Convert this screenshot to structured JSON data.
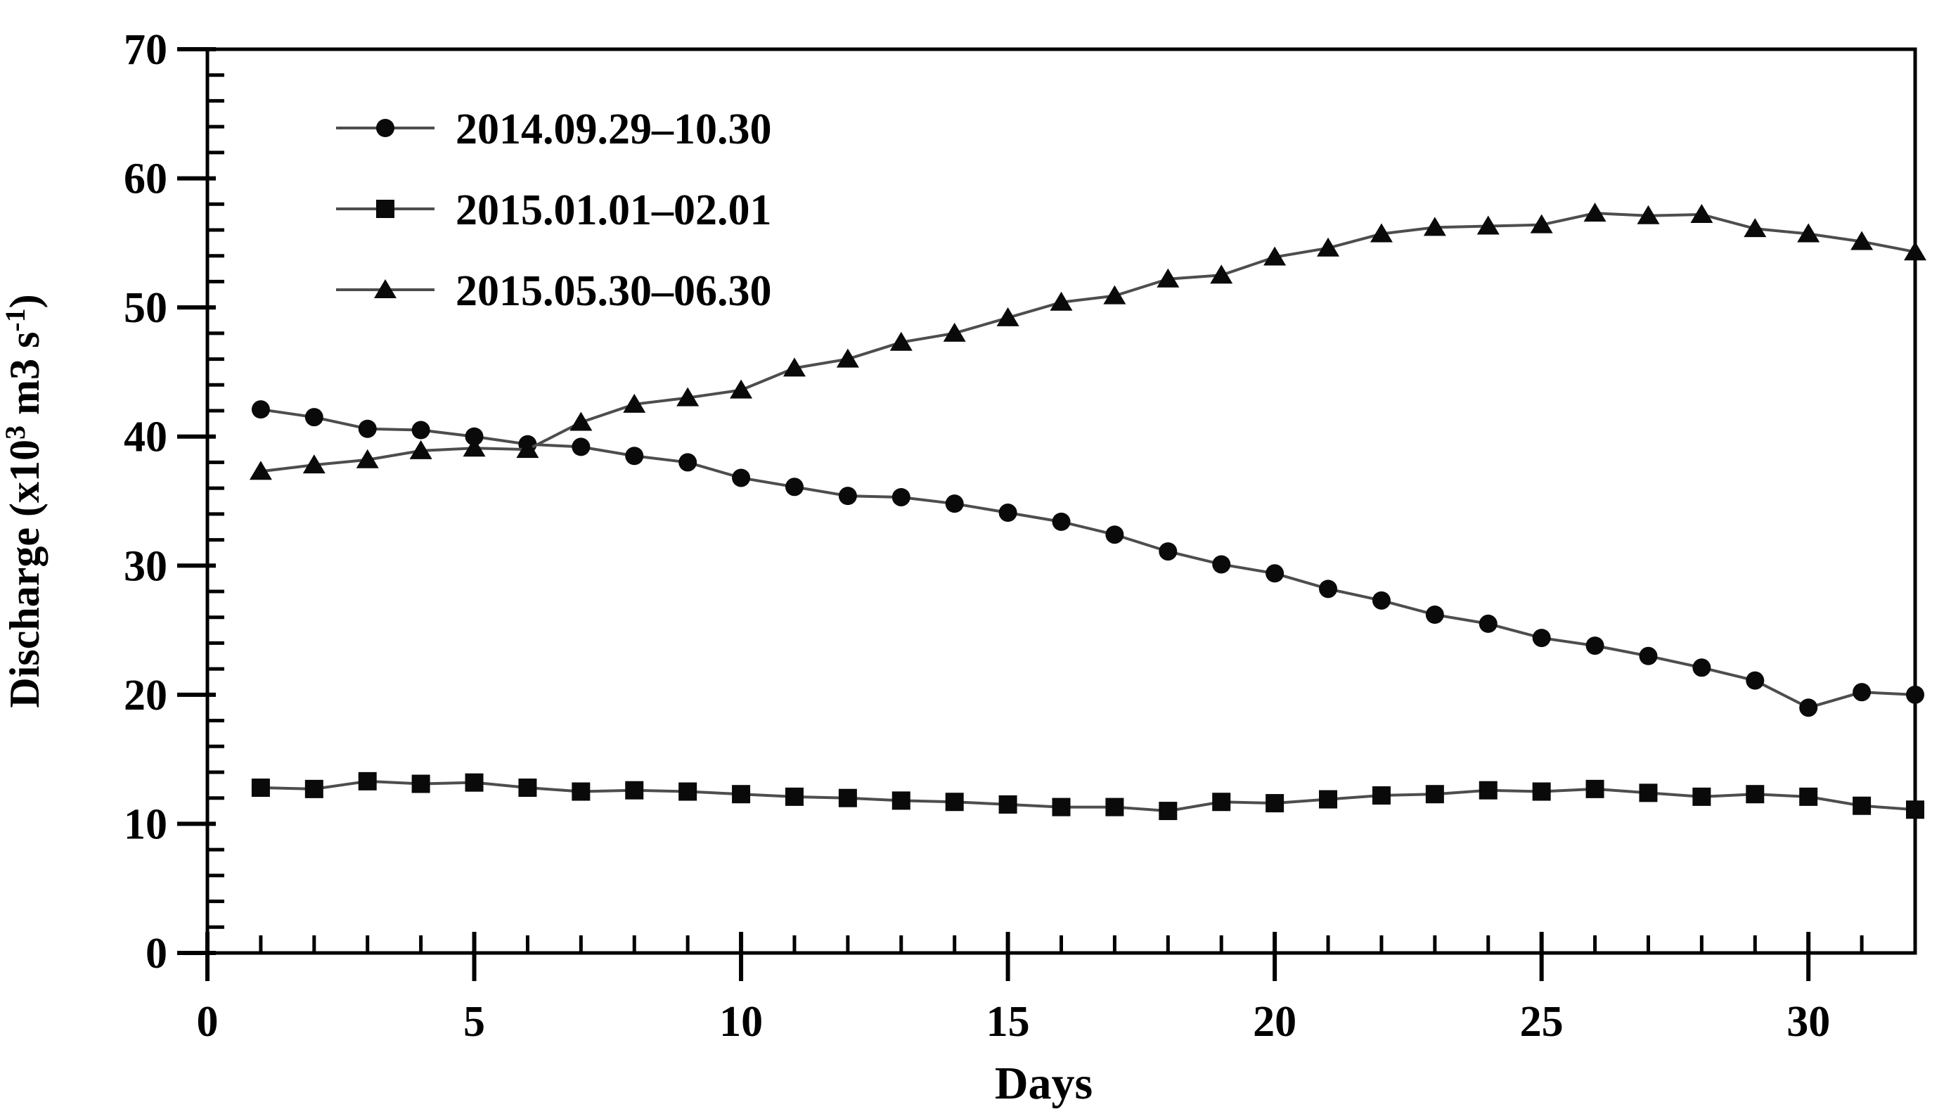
{
  "chart_data": {
    "type": "line",
    "title": "",
    "xlabel": "Days",
    "ylabel": "Discharge (x10³ m3 s⁻¹)",
    "ylabel_parts": [
      {
        "t": "Discharge (x10",
        "sup": false
      },
      {
        "t": "3",
        "sup": true
      },
      {
        "t": " m3 s",
        "sup": false
      },
      {
        "t": "-1",
        "sup": true
      },
      {
        "t": ")",
        "sup": false
      }
    ],
    "x": [
      1,
      2,
      3,
      4,
      5,
      6,
      7,
      8,
      9,
      10,
      11,
      12,
      13,
      14,
      15,
      16,
      17,
      18,
      19,
      20,
      21,
      22,
      23,
      24,
      25,
      26,
      27,
      28,
      29,
      30,
      31,
      32
    ],
    "series": [
      {
        "name": "2014.09.29–10.30",
        "marker": "circle",
        "values": [
          42.1,
          41.5,
          40.6,
          40.5,
          40.0,
          39.4,
          39.2,
          38.5,
          38.0,
          36.8,
          36.1,
          35.4,
          35.3,
          34.8,
          34.1,
          33.4,
          32.4,
          31.1,
          30.1,
          29.4,
          28.2,
          27.3,
          26.2,
          25.5,
          24.4,
          23.8,
          23.0,
          22.1,
          21.1,
          19.0,
          20.2,
          20.0
        ]
      },
      {
        "name": "2015.01.01–02.01",
        "marker": "square",
        "values": [
          12.8,
          12.7,
          13.3,
          13.1,
          13.2,
          12.8,
          12.5,
          12.6,
          12.5,
          12.3,
          12.1,
          12.0,
          11.8,
          11.7,
          11.5,
          11.3,
          11.3,
          11.0,
          11.7,
          11.6,
          11.9,
          12.2,
          12.3,
          12.6,
          12.5,
          12.7,
          12.4,
          12.1,
          12.3,
          12.1,
          11.4,
          11.1
        ]
      },
      {
        "name": "2015.05.30–06.30",
        "marker": "triangle",
        "values": [
          37.3,
          37.8,
          38.2,
          38.9,
          39.1,
          39.0,
          41.1,
          42.5,
          43.0,
          43.6,
          45.3,
          46.0,
          47.3,
          48.0,
          49.2,
          50.4,
          50.9,
          52.2,
          52.5,
          53.9,
          54.6,
          55.7,
          56.2,
          56.3,
          56.4,
          57.3,
          57.1,
          57.2,
          56.1,
          55.7,
          55.1,
          54.3
        ]
      }
    ],
    "xlim": [
      0,
      32
    ],
    "ylim": [
      0,
      70
    ],
    "x_major_ticks": [
      0,
      5,
      10,
      15,
      20,
      25,
      30
    ],
    "x_minor_step": 1,
    "y_major_ticks": [
      0,
      10,
      20,
      30,
      40,
      50,
      60,
      70
    ],
    "y_minor_step": 2,
    "legend_position": "upper-left",
    "grid": false,
    "colors": {
      "marker": "#0a0a0a",
      "line": "#4d4d4d",
      "axis": "#000000",
      "text": "#000000",
      "background": "#ffffff"
    }
  }
}
